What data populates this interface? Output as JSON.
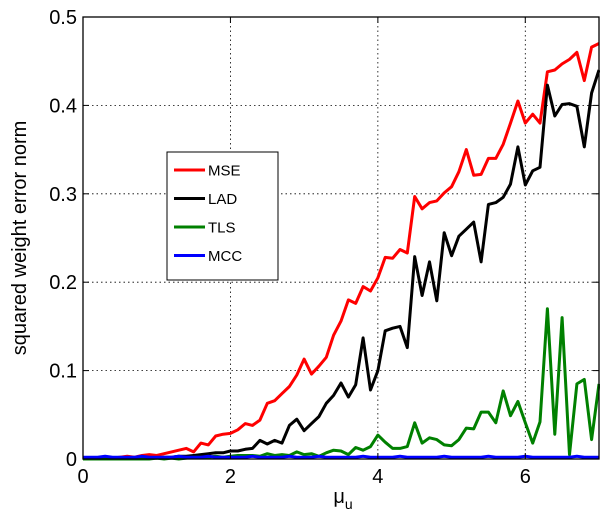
{
  "chart_data": {
    "type": "line",
    "xlabel": "μu",
    "ylabel": "squared weight error norm",
    "xlim": [
      0,
      7
    ],
    "ylim": [
      0,
      0.5
    ],
    "xticks": [
      0,
      2,
      4,
      6
    ],
    "yticks": [
      0,
      0.1,
      0.2,
      0.3,
      0.4,
      0.5
    ],
    "xtick_labels": [
      "0",
      "2",
      "4",
      "6"
    ],
    "ytick_labels": [
      "0",
      "0.1",
      "0.2",
      "0.3",
      "0.4",
      "0.5"
    ],
    "grid": true,
    "legend_position": "left",
    "x": [
      0,
      0.1,
      0.2,
      0.3,
      0.4,
      0.5,
      0.6,
      0.7,
      0.8,
      0.9,
      1.0,
      1.1,
      1.2,
      1.3,
      1.4,
      1.5,
      1.6,
      1.7,
      1.8,
      1.9,
      2.0,
      2.1,
      2.2,
      2.3,
      2.4,
      2.5,
      2.6,
      2.7,
      2.8,
      2.9,
      3.0,
      3.1,
      3.2,
      3.3,
      3.4,
      3.5,
      3.6,
      3.7,
      3.8,
      3.9,
      4.0,
      4.1,
      4.2,
      4.3,
      4.4,
      4.5,
      4.6,
      4.7,
      4.8,
      4.9,
      5.0,
      5.1,
      5.2,
      5.3,
      5.4,
      5.5,
      5.6,
      5.7,
      5.8,
      5.9,
      6.0,
      6.1,
      6.2,
      6.3,
      6.4,
      6.5,
      6.6,
      6.7,
      6.8,
      6.9,
      7.0
    ],
    "series": [
      {
        "name": "MSE",
        "color": "#ff0000",
        "values": [
          0.0,
          0.0,
          0.001,
          0.001,
          0.001,
          0.002,
          0.003,
          0.002,
          0.004,
          0.005,
          0.004,
          0.006,
          0.008,
          0.01,
          0.012,
          0.008,
          0.018,
          0.016,
          0.026,
          0.028,
          0.029,
          0.033,
          0.04,
          0.038,
          0.044,
          0.063,
          0.066,
          0.074,
          0.082,
          0.095,
          0.113,
          0.096,
          0.105,
          0.115,
          0.14,
          0.156,
          0.18,
          0.176,
          0.195,
          0.19,
          0.205,
          0.228,
          0.227,
          0.237,
          0.233,
          0.297,
          0.283,
          0.29,
          0.292,
          0.301,
          0.308,
          0.325,
          0.35,
          0.321,
          0.322,
          0.34,
          0.34,
          0.356,
          0.38,
          0.405,
          0.38,
          0.39,
          0.38,
          0.438,
          0.44,
          0.447,
          0.452,
          0.46,
          0.428,
          0.466,
          0.47
        ]
      },
      {
        "name": "LAD",
        "color": "#000000",
        "values": [
          0.0,
          0.0,
          0.0,
          0.0,
          0.0,
          0.0,
          0.001,
          0.001,
          0.001,
          0.001,
          0.001,
          0.002,
          0.002,
          0.003,
          0.003,
          0.004,
          0.005,
          0.006,
          0.007,
          0.007,
          0.009,
          0.009,
          0.011,
          0.012,
          0.021,
          0.017,
          0.021,
          0.018,
          0.038,
          0.045,
          0.032,
          0.04,
          0.048,
          0.063,
          0.072,
          0.086,
          0.07,
          0.084,
          0.137,
          0.078,
          0.1,
          0.145,
          0.148,
          0.15,
          0.126,
          0.229,
          0.185,
          0.223,
          0.179,
          0.256,
          0.23,
          0.252,
          0.26,
          0.268,
          0.223,
          0.288,
          0.29,
          0.296,
          0.311,
          0.353,
          0.31,
          0.326,
          0.33,
          0.423,
          0.388,
          0.401,
          0.402,
          0.399,
          0.353,
          0.414,
          0.44
        ]
      },
      {
        "name": "TLS",
        "color": "#008000",
        "values": [
          0.0,
          0.0,
          0.0,
          0.0,
          0.0,
          0.0,
          0.0,
          0.0,
          0.0,
          0.0,
          0.001,
          0.0,
          0.001,
          0.0,
          0.001,
          0.002,
          0.002,
          0.002,
          0.003,
          0.002,
          0.003,
          0.004,
          0.004,
          0.004,
          0.003,
          0.006,
          0.004,
          0.005,
          0.004,
          0.008,
          0.005,
          0.006,
          0.003,
          0.007,
          0.01,
          0.009,
          0.005,
          0.013,
          0.01,
          0.014,
          0.027,
          0.019,
          0.012,
          0.012,
          0.014,
          0.041,
          0.018,
          0.024,
          0.022,
          0.016,
          0.015,
          0.022,
          0.035,
          0.034,
          0.053,
          0.053,
          0.041,
          0.077,
          0.049,
          0.065,
          0.041,
          0.018,
          0.042,
          0.17,
          0.028,
          0.16,
          0.005,
          0.085,
          0.09,
          0.022,
          0.085
        ]
      },
      {
        "name": "MCC",
        "color": "#0000ff",
        "values": [
          0.002,
          0.002,
          0.002,
          0.003,
          0.002,
          0.002,
          0.002,
          0.002,
          0.003,
          0.002,
          0.002,
          0.002,
          0.002,
          0.003,
          0.002,
          0.002,
          0.002,
          0.003,
          0.002,
          0.002,
          0.002,
          0.002,
          0.002,
          0.003,
          0.002,
          0.002,
          0.002,
          0.002,
          0.003,
          0.002,
          0.002,
          0.002,
          0.003,
          0.002,
          0.002,
          0.002,
          0.002,
          0.002,
          0.003,
          0.002,
          0.002,
          0.002,
          0.002,
          0.003,
          0.002,
          0.002,
          0.002,
          0.002,
          0.002,
          0.003,
          0.002,
          0.002,
          0.002,
          0.002,
          0.002,
          0.003,
          0.002,
          0.002,
          0.002,
          0.002,
          0.003,
          0.002,
          0.002,
          0.002,
          0.002,
          0.002,
          0.002,
          0.003,
          0.002,
          0.002,
          0.002
        ]
      }
    ]
  }
}
